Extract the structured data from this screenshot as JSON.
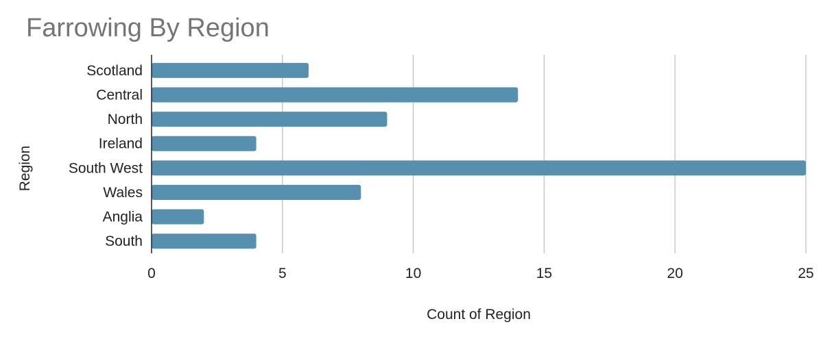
{
  "chart_data": {
    "type": "bar",
    "orientation": "horizontal",
    "title": "Farrowing By Region",
    "xlabel": "Count of Region",
    "ylabel": "Region",
    "categories": [
      "Scotland",
      "Central",
      "North",
      "Ireland",
      "South West",
      "Wales",
      "Anglia",
      "South"
    ],
    "values": [
      6,
      14,
      9,
      4,
      25,
      8,
      2,
      4
    ],
    "xlim": [
      0,
      25
    ],
    "xticks": [
      0,
      5,
      10,
      15,
      20,
      25
    ],
    "grid": "vertical",
    "legend": "none",
    "bar_color": "#5790ae",
    "gridline_color": "#c8c8c8",
    "axis_color": "#222222"
  }
}
